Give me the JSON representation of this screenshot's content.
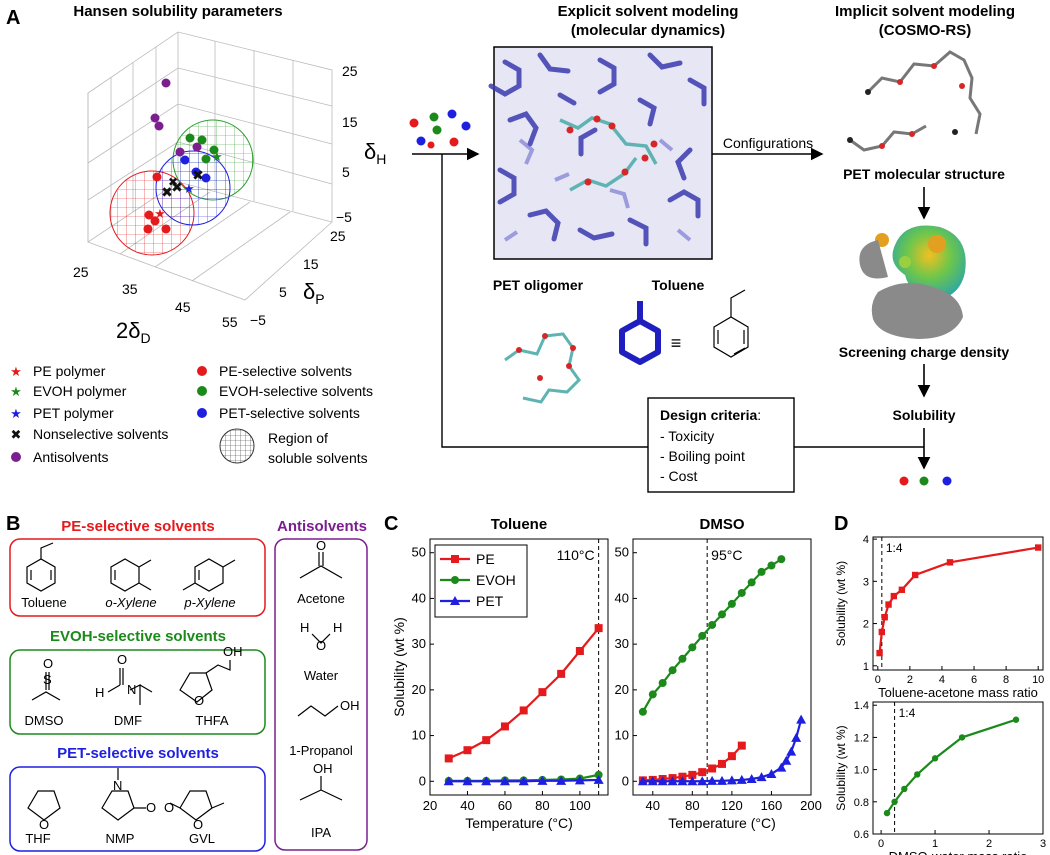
{
  "panelA": {
    "label": "A",
    "hansen": {
      "title": "Hansen solubility parameters",
      "z_ticks": [
        "25",
        "15",
        "5",
        "−5"
      ],
      "y_ticks": [
        "25",
        "15",
        "5",
        "−5"
      ],
      "x_ticks": [
        "25",
        "35",
        "45",
        "55"
      ],
      "z_label": "δ",
      "z_sub": "H",
      "y_label": "δ",
      "y_sub": "P",
      "x_label": "2δ",
      "x_sub": "D"
    },
    "legend": [
      {
        "label": "PE polymer",
        "marker": "star",
        "color": "#e41a1c"
      },
      {
        "label": "EVOH polymer",
        "marker": "star",
        "color": "#1b8a1b"
      },
      {
        "label": "PET polymer",
        "marker": "star",
        "color": "#1f1fe0"
      },
      {
        "label": "Nonselective solvents",
        "marker": "cross",
        "color": "#111111"
      },
      {
        "label": "Antisolvents",
        "marker": "dot",
        "color": "#7b1f8f"
      },
      {
        "label": "PE-selective solvents",
        "marker": "dot",
        "color": "#e41a1c"
      },
      {
        "label": "EVOH-selective solvents",
        "marker": "dot",
        "color": "#1b8a1b"
      },
      {
        "label": "PET-selective solvents",
        "marker": "dot",
        "color": "#1f1fe0"
      },
      {
        "label": "Region of",
        "marker": "sphere",
        "color": "#444444"
      },
      {
        "label": "soluble solvents",
        "marker": "none",
        "color": "#444444"
      }
    ],
    "explicit": {
      "title1": "Explicit solvent modeling",
      "title2": "(molecular dynamics)"
    },
    "implicit": {
      "title1": "Implicit solvent modeling",
      "title2": "(COSMO-RS)"
    },
    "configurations": "Configurations",
    "pet_structure": "PET molecular structure",
    "screening": "Screening charge density",
    "solubility": "Solubility",
    "pet_oligomer": "PET oligomer",
    "toluene": "Toluene",
    "equiv": "≡",
    "design": {
      "title": "Design criteria",
      "colon": ":",
      "items": [
        "- Toxicity",
        "- Boiling point",
        "- Cost"
      ]
    }
  },
  "panelB": {
    "label": "B",
    "pe_title": "PE-selective solvents",
    "pe": [
      "Toluene",
      "o-Xylene",
      "p-Xylene"
    ],
    "evoh_title": "EVOH-selective solvents",
    "evoh": [
      "DMSO",
      "DMF",
      "THFA"
    ],
    "pet_title": "PET-selective solvents",
    "pet": [
      "THF",
      "NMP",
      "GVL"
    ],
    "anti_title": "Antisolvents",
    "anti": [
      "Acetone",
      "Water",
      "1-Propanol",
      "IPA"
    ],
    "atoms": {
      "O": "O",
      "H": "H",
      "N": "N",
      "S": "S",
      "OH": "OH"
    }
  },
  "panelC": {
    "label": "C"
  },
  "panelD": {
    "label": "D"
  },
  "chart_data": [
    {
      "type": "line",
      "title": "Toluene",
      "xlabel": "Temperature (°C)",
      "ylabel": "Solubility (wt %)",
      "xlim": [
        20,
        115
      ],
      "ylim": [
        -3,
        53
      ],
      "xticks": [
        20,
        40,
        60,
        80,
        100
      ],
      "yticks": [
        0,
        10,
        20,
        30,
        40,
        50
      ],
      "vline": 110,
      "vline_label": "110°C",
      "series": [
        {
          "name": "PE",
          "color": "#e41a1c",
          "marker": "square",
          "x": [
            30,
            40,
            50,
            60,
            70,
            80,
            90,
            100,
            110
          ],
          "y": [
            5,
            6.8,
            9,
            12,
            15.5,
            19.5,
            23.5,
            28.5,
            33.5
          ]
        },
        {
          "name": "EVOH",
          "color": "#1b8a1b",
          "marker": "circle",
          "x": [
            30,
            40,
            50,
            60,
            70,
            80,
            90,
            100,
            110
          ],
          "y": [
            0.1,
            0.1,
            0.1,
            0.2,
            0.2,
            0.3,
            0.4,
            0.6,
            1.4
          ]
        },
        {
          "name": "PET",
          "color": "#1f1fe0",
          "marker": "triangle",
          "x": [
            30,
            40,
            50,
            60,
            70,
            80,
            90,
            100,
            110
          ],
          "y": [
            0,
            0,
            0,
            0,
            0,
            0.1,
            0.1,
            0.2,
            0.3
          ]
        }
      ]
    },
    {
      "type": "line",
      "title": "DMSO",
      "xlabel": "Temperature (°C)",
      "ylabel": "",
      "xlim": [
        20,
        200
      ],
      "ylim": [
        -3,
        53
      ],
      "xticks": [
        40,
        80,
        120,
        160,
        200
      ],
      "yticks": [
        0,
        10,
        20,
        30,
        40,
        50
      ],
      "vline": 95,
      "vline_label": "95°C",
      "series": [
        {
          "name": "PE",
          "color": "#e41a1c",
          "marker": "square",
          "x": [
            30,
            40,
            50,
            60,
            70,
            80,
            90,
            100,
            110,
            120,
            130
          ],
          "y": [
            0.2,
            0.3,
            0.5,
            0.7,
            1.0,
            1.4,
            2.0,
            2.8,
            3.8,
            5.5,
            7.8
          ]
        },
        {
          "name": "EVOH",
          "color": "#1b8a1b",
          "marker": "circle",
          "x": [
            30,
            40,
            50,
            60,
            70,
            80,
            90,
            100,
            110,
            120,
            130,
            140,
            150,
            160,
            170
          ],
          "y": [
            15.2,
            19,
            21.5,
            24.3,
            26.8,
            29.3,
            31.8,
            34.2,
            36.5,
            38.8,
            41.2,
            43.5,
            45.8,
            47.2,
            48.6
          ]
        },
        {
          "name": "PET",
          "color": "#1f1fe0",
          "marker": "triangle",
          "x": [
            30,
            40,
            50,
            60,
            70,
            80,
            90,
            100,
            110,
            120,
            130,
            140,
            150,
            160,
            170,
            175,
            180,
            185,
            190
          ],
          "y": [
            0,
            0,
            0,
            0,
            0,
            0,
            0,
            0.1,
            0.1,
            0.2,
            0.3,
            0.5,
            0.9,
            1.6,
            3,
            4.5,
            6.5,
            9.5,
            13.5
          ]
        }
      ]
    },
    {
      "type": "line",
      "title": "",
      "xlabel": "Toluene-acetone mass ratio",
      "ylabel": "Solubility (wt %)",
      "xlim": [
        -0.3,
        10.3
      ],
      "ylim": [
        0.9,
        4.05
      ],
      "xticks": [
        0,
        2,
        4,
        6,
        8,
        10
      ],
      "yticks": [
        1,
        2,
        3,
        4
      ],
      "vline": 0.25,
      "vline_label": "1:4",
      "series": [
        {
          "name": "PE",
          "color": "#e41a1c",
          "marker": "square",
          "x": [
            0.11,
            0.25,
            0.43,
            0.67,
            1,
            1.5,
            2.33,
            4.5,
            10
          ],
          "y": [
            1.3,
            1.8,
            2.15,
            2.45,
            2.65,
            2.8,
            3.15,
            3.45,
            3.8
          ]
        }
      ]
    },
    {
      "type": "line",
      "title": "",
      "xlabel": "DMSO-water mass ratio",
      "ylabel": "Solubility (wt %)",
      "xlim": [
        -0.15,
        3
      ],
      "ylim": [
        0.6,
        1.42
      ],
      "xticks": [
        0,
        1,
        2,
        3
      ],
      "yticks": [
        0.6,
        0.8,
        1.0,
        1.2,
        1.4
      ],
      "vline": 0.25,
      "vline_label": "1:4",
      "series": [
        {
          "name": "EVOH",
          "color": "#1b8a1b",
          "marker": "circle",
          "x": [
            0.11,
            0.25,
            0.43,
            0.67,
            1.0,
            1.5,
            2.5
          ],
          "y": [
            0.73,
            0.8,
            0.88,
            0.97,
            1.07,
            1.2,
            1.31
          ]
        }
      ]
    }
  ]
}
